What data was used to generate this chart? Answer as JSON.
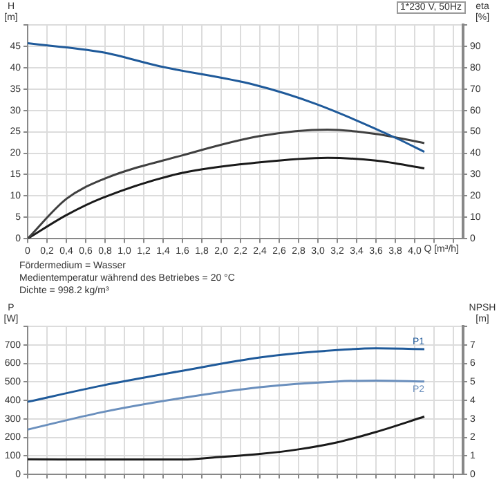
{
  "chart_data": [
    {
      "type": "line",
      "ylabel": "H [m]",
      "y2label": "eta [%]",
      "xlabel": "Q [m³/h]",
      "annotations": [
        "1*230 V, 50Hz",
        "Fördermedium = Wasser",
        "Medientemperatur während des Betriebes = 20 °C",
        "Dichte = 998.2 kg/m³"
      ],
      "xlim": [
        0,
        4.5
      ],
      "xticks": [
        0,
        {
          "value": 0.2,
          "label": "0,2"
        },
        {
          "value": 0.4,
          "label": "0,4"
        },
        {
          "value": 0.6,
          "label": "0,6"
        },
        {
          "value": 0.8,
          "label": "0,8"
        },
        {
          "value": 1,
          "label": "1,0"
        },
        {
          "value": 1.2,
          "label": "1,2"
        },
        {
          "value": 1.4,
          "label": "1,4"
        },
        {
          "value": 1.6,
          "label": "1,6"
        },
        {
          "value": 1.8,
          "label": "1,8"
        },
        {
          "value": 2,
          "label": "2,0"
        },
        {
          "value": 2.2,
          "label": "2,2"
        },
        {
          "value": 2.4,
          "label": "2,4"
        },
        {
          "value": 2.6,
          "label": "2,6"
        },
        {
          "value": 2.8,
          "label": "2,8"
        },
        {
          "value": 3,
          "label": "3,0"
        },
        {
          "value": 3.2,
          "label": "3,2"
        },
        {
          "value": 3.4,
          "label": "3,4"
        },
        {
          "value": 3.6,
          "label": "3,6"
        },
        {
          "value": 3.8,
          "label": "3,8"
        },
        {
          "value": 4,
          "label": "4,0"
        },
        {
          "value": 4.2,
          "label": null
        },
        {
          "value": 4.4,
          "label": null
        }
      ],
      "ylim": [
        0,
        50
      ],
      "yticks": [
        0,
        5,
        10,
        15,
        20,
        25,
        30,
        35,
        40,
        45,
        {
          "value": 50,
          "label": null
        }
      ],
      "y2lim": [
        0,
        100
      ],
      "y2ticks": [
        0,
        10,
        20,
        30,
        40,
        50,
        60,
        70,
        80,
        90,
        {
          "value": 100,
          "label": null
        }
      ],
      "grid": true,
      "legend": false,
      "marker": "none",
      "series": [
        {
          "color": "#1f5a9a",
          "x": [
            0,
            0.77,
            1.37,
            2.34,
            2.98,
            3.82,
            4.1
          ],
          "values": [
            45.7,
            43.6,
            40.3,
            36,
            31.5,
            23.4,
            20.3
          ]
        },
        {
          "color": "#404040",
          "axis": "y2",
          "x": [
            0,
            0.4,
            0.77,
            1.6,
            2.4,
            3.1,
            3.6,
            4.1
          ],
          "values": [
            0,
            18.6,
            27.6,
            39,
            48,
            51,
            49,
            44.7
          ]
        },
        {
          "color": "#1a1a1a",
          "axis": "y2",
          "x": [
            0,
            0.4,
            0.77,
            1.6,
            2.4,
            3.1,
            3.6,
            4.1
          ],
          "values": [
            0,
            11,
            19,
            30.8,
            35.7,
            37.8,
            36.5,
            32.9
          ]
        }
      ]
    },
    {
      "type": "line",
      "ylabel": "P [W]",
      "y2label": "NPSH [m]",
      "xlim": [
        0,
        4.5
      ],
      "xticks": [
        0,
        0.2,
        0.4,
        0.6,
        0.8,
        1,
        1.2,
        1.4,
        1.6,
        1.8,
        2,
        2.2,
        2.4,
        2.6,
        2.8,
        3,
        3.2,
        3.4,
        3.6,
        3.8,
        4,
        4.2,
        4.4
      ],
      "ylim": [
        0,
        800
      ],
      "yticks": [
        0,
        100,
        200,
        300,
        400,
        500,
        600,
        700,
        {
          "value": 800,
          "label": null
        }
      ],
      "y2lim": [
        0,
        8
      ],
      "y2ticks": [
        0,
        1,
        2,
        3,
        4,
        5,
        6,
        7,
        {
          "value": 8,
          "label": null
        }
      ],
      "tick_labels": "y",
      "grid": true,
      "legend": false,
      "marker": "none",
      "series": [
        {
          "name": "P1",
          "color": "#1f5a9a",
          "x": [
            0,
            0.77,
            1.6,
            2.4,
            3.2,
            3.6,
            4.1
          ],
          "values": [
            392,
            480,
            560,
            632,
            672,
            681,
            677
          ]
        },
        {
          "name": "P2",
          "color": "#6a8fbd",
          "x": [
            0,
            0.77,
            1.6,
            2.4,
            3.2,
            3.6,
            4.1
          ],
          "values": [
            242,
            336,
            413,
            471,
            502,
            507,
            502
          ]
        },
        {
          "color": "#1a1a1a",
          "axis": "y2",
          "x": [
            0,
            0.77,
            1.6,
            2,
            2.4,
            2.8,
            3.2,
            3.6,
            4.1
          ],
          "values": [
            0.81,
            0.8,
            0.8,
            0.94,
            1.1,
            1.35,
            1.73,
            2.29,
            3.12
          ]
        }
      ]
    }
  ]
}
